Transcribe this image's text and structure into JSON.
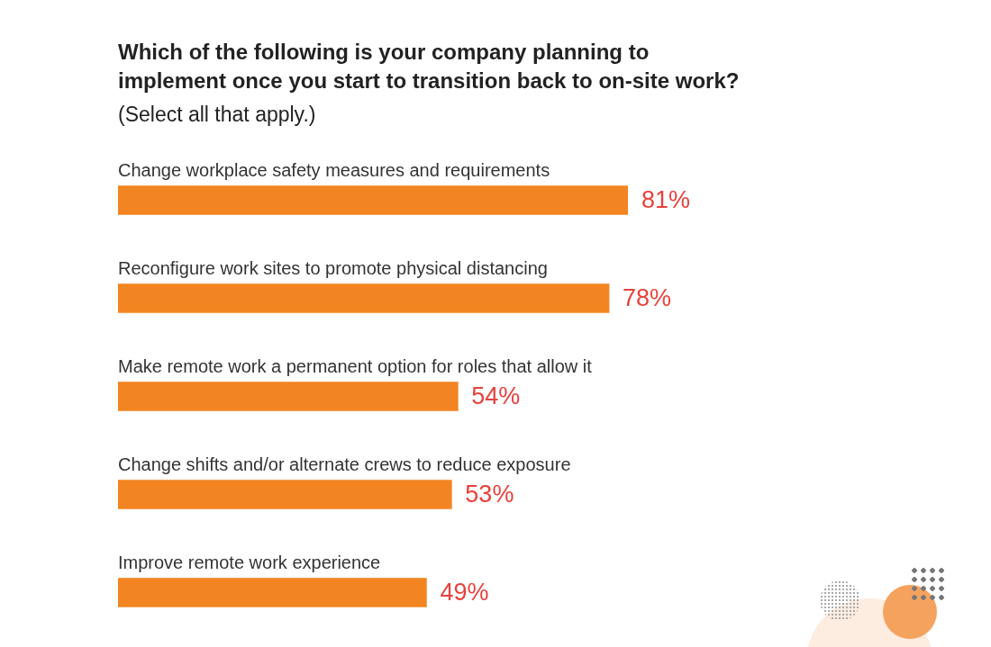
{
  "chart_data": {
    "type": "bar",
    "orientation": "horizontal",
    "tick_labels": false,
    "legend": false,
    "title": "Which of the following is your company planning to implement once you start to transition back to on-site work?",
    "subtitle": "(Select all that apply.)",
    "categories": [
      "Change workplace safety measures and requirements",
      "Reconfigure work sites to promote physical distancing",
      "Make remote work a permanent option for roles that allow it",
      "Change shifts and/or alternate crews to reduce exposure",
      "Improve remote work experience"
    ],
    "values": [
      81,
      78,
      54,
      53,
      49
    ],
    "value_labels": [
      "81%",
      "78%",
      "54%",
      "53%",
      "49%"
    ],
    "color": "#f28421"
  }
}
